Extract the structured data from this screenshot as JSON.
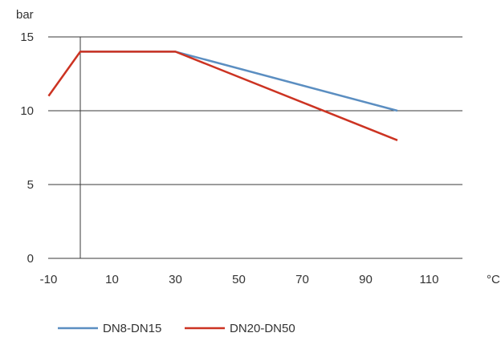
{
  "chart_data": {
    "type": "line",
    "ylabel": "bar",
    "xlabel": "°C",
    "xlim": [
      -10,
      120
    ],
    "ylim": [
      0,
      15
    ],
    "x_ticks": [
      -10,
      10,
      30,
      50,
      70,
      90,
      110
    ],
    "y_ticks": [
      0,
      5,
      10,
      15
    ],
    "vertical_axis_at_x": 0,
    "grid": "horizontal",
    "legend_position": "bottom-left",
    "series": [
      {
        "name": "DN8-DN15",
        "color": "#5b8ec1",
        "x": [
          0,
          30,
          100
        ],
        "y": [
          14,
          14,
          10
        ]
      },
      {
        "name": "DN20-DN50",
        "color": "#cc3322",
        "x": [
          -10,
          0,
          30,
          100
        ],
        "y": [
          11,
          14,
          14,
          8
        ]
      }
    ]
  }
}
